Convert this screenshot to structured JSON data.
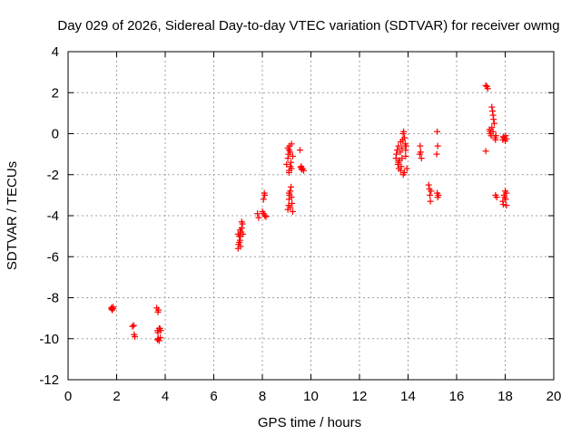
{
  "chart_data": {
    "type": "scatter",
    "title": "Day 029 of 2026, Sidereal Day-to-day VTEC variation (SDTVAR) for receiver owmg",
    "xlabel": "GPS time / hours",
    "ylabel": "SDTVAR / TECUs",
    "xlim": [
      0,
      20
    ],
    "ylim": [
      -12,
      4
    ],
    "xticks": [
      0,
      2,
      4,
      6,
      8,
      10,
      12,
      14,
      16,
      18,
      20
    ],
    "yticks": [
      -12,
      -10,
      -8,
      -6,
      -4,
      -2,
      0,
      2,
      4
    ],
    "xtick_labels": [
      "0",
      "2",
      "4",
      "6",
      "8",
      "10",
      "12",
      "14",
      "16",
      "18",
      "20"
    ],
    "ytick_labels": [
      "-12",
      "-10",
      "-8",
      "-6",
      "-4",
      "-2",
      "0",
      "2",
      "4"
    ],
    "grid": true,
    "marker": "+",
    "marker_color": "#ff0000",
    "series": [
      {
        "name": "SDTVAR",
        "points": [
          [
            1.78,
            -8.5
          ],
          [
            1.8,
            -8.55
          ],
          [
            1.82,
            -8.6
          ],
          [
            1.84,
            -8.45
          ],
          [
            1.86,
            -8.52
          ],
          [
            2.65,
            -9.4
          ],
          [
            2.7,
            -9.35
          ],
          [
            2.72,
            -9.8
          ],
          [
            2.75,
            -9.9
          ],
          [
            3.65,
            -8.5
          ],
          [
            3.7,
            -8.7
          ],
          [
            3.72,
            -8.6
          ],
          [
            3.75,
            -9.5
          ],
          [
            3.68,
            -9.6
          ],
          [
            3.7,
            -9.7
          ],
          [
            3.72,
            -10.0
          ],
          [
            3.75,
            -10.1
          ],
          [
            3.78,
            -9.5
          ],
          [
            3.8,
            -9.95
          ],
          [
            3.82,
            -9.6
          ],
          [
            3.68,
            -10.05
          ],
          [
            7.0,
            -5.6
          ],
          [
            7.02,
            -5.4
          ],
          [
            7.05,
            -5.3
          ],
          [
            7.08,
            -5.2
          ],
          [
            7.1,
            -5.0
          ],
          [
            7.12,
            -4.8
          ],
          [
            7.15,
            -4.6
          ],
          [
            7.18,
            -4.4
          ],
          [
            7.05,
            -5.0
          ],
          [
            7.1,
            -5.5
          ],
          [
            7.0,
            -4.9
          ],
          [
            7.15,
            -4.3
          ],
          [
            7.2,
            -4.9
          ],
          [
            7.08,
            -4.7
          ],
          [
            7.8,
            -3.9
          ],
          [
            7.85,
            -4.1
          ],
          [
            8.0,
            -3.8
          ],
          [
            8.05,
            -3.9
          ],
          [
            8.1,
            -4.0
          ],
          [
            8.15,
            -4.05
          ],
          [
            8.1,
            -3.0
          ],
          [
            8.05,
            -3.2
          ],
          [
            8.08,
            -2.9
          ],
          [
            9.0,
            -1.5
          ],
          [
            9.05,
            -1.2
          ],
          [
            9.08,
            -1.0
          ],
          [
            9.1,
            -0.8
          ],
          [
            9.12,
            -0.6
          ],
          [
            9.15,
            -0.9
          ],
          [
            9.18,
            -1.4
          ],
          [
            9.2,
            -1.7
          ],
          [
            9.1,
            -1.8
          ],
          [
            9.05,
            -0.7
          ],
          [
            9.2,
            -0.5
          ],
          [
            9.25,
            -1.1
          ],
          [
            9.15,
            -1.6
          ],
          [
            9.1,
            -1.9
          ],
          [
            9.05,
            -3.7
          ],
          [
            9.08,
            -3.5
          ],
          [
            9.1,
            -3.2
          ],
          [
            9.12,
            -3.0
          ],
          [
            9.15,
            -2.8
          ],
          [
            9.18,
            -2.6
          ],
          [
            9.2,
            -3.1
          ],
          [
            9.22,
            -3.4
          ],
          [
            9.25,
            -3.8
          ],
          [
            9.15,
            -3.6
          ],
          [
            9.1,
            -2.9
          ],
          [
            9.55,
            -0.8
          ],
          [
            9.6,
            -1.6
          ],
          [
            9.62,
            -1.75
          ],
          [
            9.65,
            -1.7
          ],
          [
            9.7,
            -1.8
          ],
          [
            9.58,
            -1.65
          ],
          [
            13.5,
            -1.2
          ],
          [
            13.52,
            -1.0
          ],
          [
            13.55,
            -0.8
          ],
          [
            13.58,
            -1.5
          ],
          [
            13.6,
            -0.6
          ],
          [
            13.62,
            -1.7
          ],
          [
            13.65,
            -1.3
          ],
          [
            13.68,
            -0.9
          ],
          [
            13.7,
            -1.8
          ],
          [
            13.72,
            -1.6
          ],
          [
            13.75,
            -0.7
          ],
          [
            13.78,
            -0.3
          ],
          [
            13.8,
            0.0
          ],
          [
            13.82,
            0.1
          ],
          [
            13.85,
            -0.2
          ],
          [
            13.88,
            -0.5
          ],
          [
            13.9,
            -0.8
          ],
          [
            13.85,
            -1.9
          ],
          [
            13.8,
            -2.0
          ],
          [
            13.75,
            -1.2
          ],
          [
            13.9,
            -1.1
          ],
          [
            13.92,
            -0.6
          ],
          [
            13.95,
            -1.7
          ],
          [
            13.7,
            -0.4
          ],
          [
            13.6,
            -1.4
          ],
          [
            14.5,
            -0.6
          ],
          [
            14.52,
            -0.9
          ],
          [
            14.55,
            -1.2
          ],
          [
            14.48,
            -1.0
          ],
          [
            14.85,
            -2.5
          ],
          [
            14.88,
            -2.7
          ],
          [
            14.9,
            -3.0
          ],
          [
            14.92,
            -3.3
          ],
          [
            14.95,
            -2.8
          ],
          [
            15.2,
            0.1
          ],
          [
            15.22,
            -0.6
          ],
          [
            15.18,
            -1.0
          ],
          [
            15.2,
            -2.9
          ],
          [
            15.22,
            -3.1
          ],
          [
            15.25,
            -3.0
          ],
          [
            17.2,
            -0.85
          ],
          [
            17.2,
            2.35
          ],
          [
            17.25,
            2.3
          ],
          [
            17.28,
            2.2
          ],
          [
            17.35,
            0.2
          ],
          [
            17.38,
            0.1
          ],
          [
            17.4,
            0.0
          ],
          [
            17.42,
            -0.1
          ],
          [
            17.45,
            1.3
          ],
          [
            17.48,
            1.1
          ],
          [
            17.5,
            0.9
          ],
          [
            17.52,
            0.7
          ],
          [
            17.55,
            0.5
          ],
          [
            17.58,
            -0.2
          ],
          [
            17.6,
            -0.3
          ],
          [
            17.62,
            -0.1
          ],
          [
            17.5,
            0.1
          ],
          [
            17.45,
            0.3
          ],
          [
            17.6,
            -3.0
          ],
          [
            17.65,
            -3.1
          ],
          [
            17.9,
            -0.3
          ],
          [
            17.95,
            -0.2
          ],
          [
            18.0,
            -0.35
          ],
          [
            18.02,
            -0.1
          ],
          [
            18.05,
            -0.25
          ],
          [
            17.92,
            -0.15
          ],
          [
            17.9,
            -3.3
          ],
          [
            17.95,
            -3.0
          ],
          [
            18.0,
            -2.8
          ],
          [
            18.02,
            -3.2
          ],
          [
            18.05,
            -3.5
          ],
          [
            17.92,
            -3.45
          ],
          [
            17.98,
            -3.1
          ],
          [
            18.05,
            -2.9
          ]
        ]
      }
    ]
  }
}
